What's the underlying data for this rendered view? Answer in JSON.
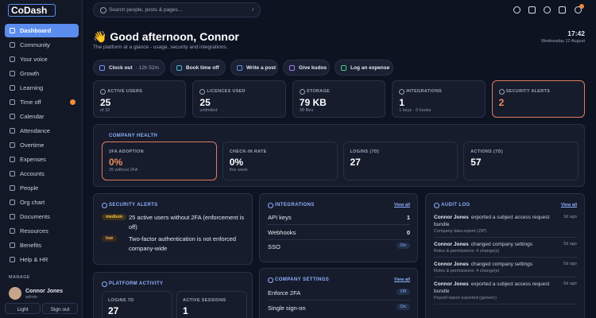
{
  "sidebar": {
    "logo": "CoDash",
    "nav": [
      "Dashboard",
      "Community",
      "Your voice",
      "Growth",
      "Learning",
      "Time off",
      "Calendar",
      "Attendance",
      "Overtime",
      "Expenses",
      "Accounts",
      "People",
      "Org chart",
      "Documents",
      "Resources",
      "Benefits",
      "Help & HR"
    ],
    "section": "MANAGE",
    "user": {
      "name": "Connor Jones",
      "role": "admin"
    },
    "buttons": [
      "Light",
      "Sign out"
    ]
  },
  "topbar": {
    "search": "Search people, posts & pages...",
    "shortcut": "/"
  },
  "header": {
    "greeting": "👋 Good afternoon, Connor",
    "subtitle": "The platform at a glance - usage, security and integrations.",
    "time": "17:42",
    "date": "Wednesday 12 August"
  },
  "actions": [
    {
      "label": "Clock out",
      "detail": "· 12h 52m"
    },
    {
      "label": "Book time off"
    },
    {
      "label": "Write a post"
    },
    {
      "label": "Give kudos"
    },
    {
      "label": "Log an expense"
    }
  ],
  "stats": [
    {
      "label": "ACTIVE USERS",
      "value": 25,
      "sub": "of 32"
    },
    {
      "label": "LICENCES USED",
      "value": 25,
      "sub": "unlimited"
    },
    {
      "label": "STORAGE",
      "value": "79 KB",
      "sub": "38 files"
    },
    {
      "label": "INTEGRATIONS",
      "value": 1,
      "sub": "1 keys · 0 hooks"
    },
    {
      "label": "SECURITY ALERTS",
      "value": 2
    }
  ],
  "health": {
    "title": "COMPANY HEALTH",
    "cards": [
      {
        "label": "2FA ADOPTION",
        "value": "0%",
        "sub": "25 without 2FA"
      },
      {
        "label": "CHECK-IN RATE",
        "value": "0%",
        "sub": "this week"
      },
      {
        "label": "LOGINS (7D)",
        "value": 27
      },
      {
        "label": "ACTIONS (7D)",
        "value": 57
      }
    ]
  },
  "security_alerts": {
    "title": "SECURITY ALERTS",
    "items": [
      {
        "level": "medium",
        "text": "25 active users without 2FA (enforcement is off)"
      },
      {
        "level": "low",
        "text": "Two-factor authentication is not enforced company-wide"
      }
    ]
  },
  "integrations": {
    "title": "INTEGRATIONS",
    "link": "View all",
    "rows": [
      {
        "label": "API keys",
        "value": 1
      },
      {
        "label": "Webhooks",
        "value": 0
      },
      {
        "label": "SSO",
        "value": "On"
      }
    ]
  },
  "audit_log": {
    "title": "AUDIT LOG",
    "link": "View all",
    "entries": [
      {
        "actor": "Connor Jones",
        "action": "exported a subject access request bundle",
        "detail": "Company data export (ZIP)",
        "time": "3d ago"
      },
      {
        "actor": "Connor Jones",
        "action": "changed company settings",
        "detail": "Roles & permissions: 4 change(s)",
        "time": "5d ago"
      },
      {
        "actor": "Connor Jones",
        "action": "changed company settings",
        "detail": "Roles & permissions: 4 change(s)",
        "time": "5d ago"
      },
      {
        "actor": "Connor Jones",
        "action": "exported a subject access request bundle",
        "detail": "Payroll report exported (generic)",
        "time": "6d ago"
      }
    ]
  },
  "platform_activity": {
    "title": "PLATFORM ACTIVITY",
    "cards": [
      {
        "label": "LOGINS 7D",
        "value": 27
      },
      {
        "label": "ACTIVE SESSIONS",
        "value": 1
      }
    ]
  },
  "company_settings": {
    "title": "COMPANY SETTINGS",
    "link": "View all",
    "rows": [
      {
        "label": "Enforce 2FA",
        "value": "Off"
      },
      {
        "label": "Single sign-on",
        "value": "On"
      }
    ]
  }
}
